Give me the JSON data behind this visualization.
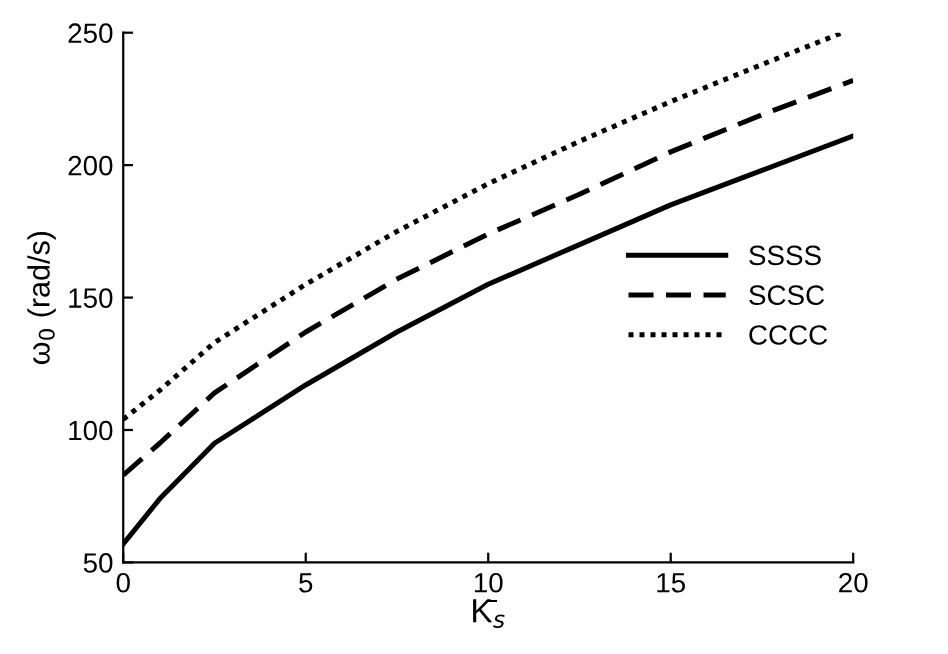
{
  "chart_data": {
    "type": "line",
    "xlabel": "K̄$_{s}$",
    "ylabel": "ω$_{0}$ (rad/s)",
    "xlim": [
      0,
      20
    ],
    "ylim": [
      50,
      250
    ],
    "xticks": [
      0,
      5,
      10,
      15,
      20
    ],
    "yticks": [
      50,
      100,
      150,
      200,
      250
    ],
    "grid": false,
    "legend": "center right",
    "series": [
      {
        "name": "SSSS",
        "color": "#000000",
        "line_style": "solid",
        "x": [
          0,
          1,
          2.5,
          5,
          7.5,
          10,
          12.5,
          15,
          17.5,
          20
        ],
        "values": [
          57,
          74,
          95,
          117,
          137,
          155,
          170,
          185,
          198,
          211
        ]
      },
      {
        "name": "SCSC",
        "color": "#000000",
        "line_style": "dashed",
        "x": [
          0,
          1,
          2.5,
          5,
          7.5,
          10,
          12.5,
          15,
          17.5,
          20
        ],
        "values": [
          83,
          95,
          114,
          137,
          157,
          174,
          189,
          205,
          219,
          232
        ]
      },
      {
        "name": "CCCC",
        "color": "#000000",
        "line_style": "dotted",
        "x": [
          0,
          1,
          2.5,
          5,
          7.5,
          10,
          12.5,
          15,
          17.5,
          19.7
        ],
        "values": [
          104,
          115,
          133,
          155,
          175,
          193,
          209,
          224,
          238,
          250
        ]
      }
    ]
  }
}
